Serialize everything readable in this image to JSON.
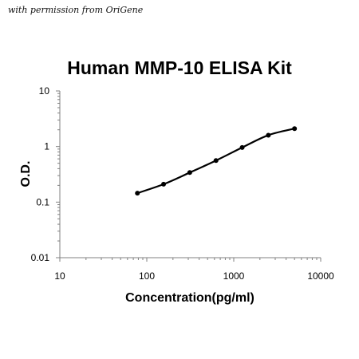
{
  "watermark": "with permission from OriGene",
  "chart_data": {
    "type": "line",
    "title": "Human MMP-10 ELISA Kit",
    "xlabel": "Concentration(pg/ml)",
    "ylabel": "O.D.",
    "xscale": "log",
    "yscale": "log",
    "xlim": [
      10,
      10000
    ],
    "ylim": [
      0.01,
      10
    ],
    "x_tick_labels": [
      "10",
      "100",
      "1000",
      "10000"
    ],
    "y_tick_labels": [
      "0.01",
      "0.1",
      "1",
      "10"
    ],
    "grid": false,
    "legend": "none",
    "colors": {
      "line": "#000000",
      "marker": "#000000",
      "axis": "#808080"
    },
    "series": [
      {
        "x": [
          78,
          156,
          312,
          625,
          1250,
          2500,
          5000
        ],
        "y": [
          0.145,
          0.21,
          0.34,
          0.56,
          0.96,
          1.6,
          2.1
        ]
      }
    ]
  }
}
